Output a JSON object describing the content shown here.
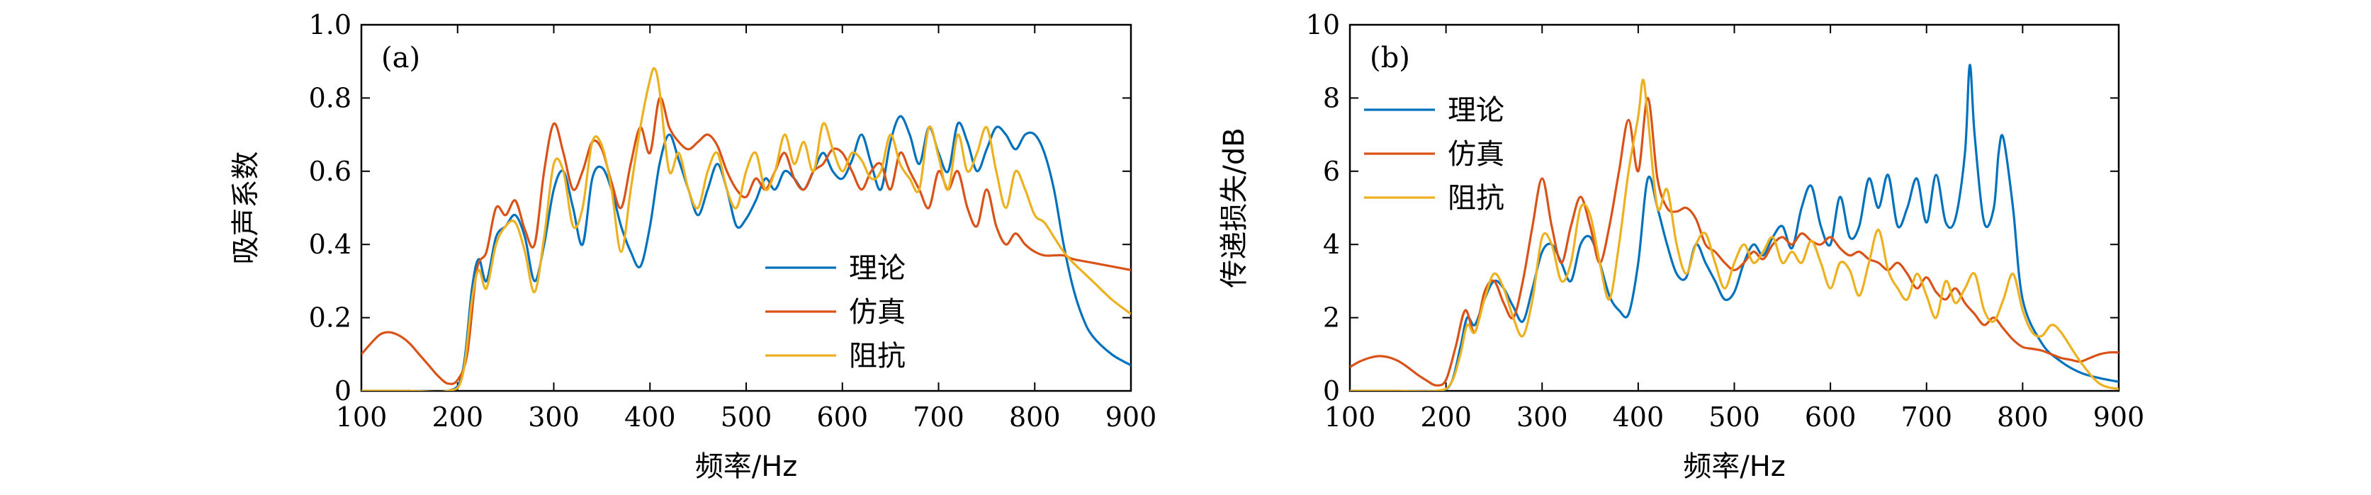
{
  "colors": {
    "theory": "#0072BD",
    "simulation": "#D95319",
    "impedance": "#EDB120",
    "axis": "#000000"
  },
  "chart_data": [
    {
      "type": "line",
      "panel_label": "(a)",
      "xlabel": "频率/Hz",
      "ylabel": "吸声系数",
      "xlim": [
        100,
        900
      ],
      "ylim": [
        0,
        1.0
      ],
      "xticks": [
        100,
        200,
        300,
        400,
        500,
        600,
        700,
        800,
        900
      ],
      "xtick_labels": [
        "100",
        "200",
        "300",
        "400",
        "500",
        "600",
        "700",
        "800",
        "900"
      ],
      "yticks": [
        0,
        0.2,
        0.4,
        0.6,
        0.8,
        1.0
      ],
      "ytick_labels": [
        "0",
        "0.2",
        "0.4",
        "0.6",
        "0.8",
        "1.0"
      ],
      "legend_position": "center-right",
      "series": [
        {
          "name": "理论",
          "color_key": "theory",
          "x": [
            100,
            150,
            190,
            205,
            215,
            222,
            230,
            240,
            250,
            260,
            270,
            280,
            290,
            300,
            310,
            320,
            330,
            340,
            350,
            360,
            370,
            380,
            390,
            400,
            410,
            420,
            430,
            440,
            450,
            460,
            470,
            480,
            490,
            500,
            510,
            520,
            530,
            540,
            550,
            560,
            570,
            580,
            590,
            600,
            610,
            620,
            630,
            640,
            650,
            660,
            670,
            680,
            690,
            700,
            710,
            720,
            730,
            740,
            750,
            760,
            770,
            780,
            790,
            800,
            810,
            820,
            830,
            840,
            850,
            860,
            880,
            900
          ],
          "y": [
            0,
            0,
            0,
            0.05,
            0.28,
            0.36,
            0.3,
            0.42,
            0.45,
            0.48,
            0.42,
            0.3,
            0.4,
            0.55,
            0.6,
            0.5,
            0.4,
            0.58,
            0.61,
            0.55,
            0.45,
            0.38,
            0.34,
            0.45,
            0.62,
            0.7,
            0.63,
            0.55,
            0.48,
            0.55,
            0.62,
            0.55,
            0.45,
            0.47,
            0.52,
            0.58,
            0.55,
            0.6,
            0.58,
            0.55,
            0.6,
            0.65,
            0.6,
            0.58,
            0.63,
            0.7,
            0.62,
            0.55,
            0.68,
            0.75,
            0.7,
            0.62,
            0.72,
            0.65,
            0.6,
            0.73,
            0.68,
            0.6,
            0.66,
            0.72,
            0.7,
            0.66,
            0.7,
            0.7,
            0.65,
            0.55,
            0.4,
            0.28,
            0.2,
            0.15,
            0.1,
            0.07
          ]
        },
        {
          "name": "仿真",
          "color_key": "simulation",
          "x": [
            100,
            110,
            120,
            130,
            140,
            150,
            160,
            170,
            180,
            190,
            200,
            210,
            220,
            230,
            240,
            250,
            260,
            270,
            280,
            290,
            300,
            310,
            320,
            330,
            340,
            350,
            360,
            370,
            380,
            390,
            400,
            410,
            420,
            430,
            440,
            450,
            460,
            470,
            480,
            490,
            500,
            510,
            520,
            530,
            540,
            550,
            560,
            570,
            580,
            590,
            600,
            610,
            620,
            630,
            640,
            650,
            660,
            670,
            680,
            690,
            700,
            710,
            720,
            730,
            740,
            750,
            760,
            770,
            780,
            790,
            800,
            810,
            820,
            830,
            840,
            860,
            880,
            900
          ],
          "y": [
            0.1,
            0.13,
            0.155,
            0.16,
            0.15,
            0.13,
            0.1,
            0.07,
            0.04,
            0.02,
            0.03,
            0.1,
            0.33,
            0.38,
            0.5,
            0.48,
            0.52,
            0.44,
            0.4,
            0.6,
            0.73,
            0.65,
            0.55,
            0.6,
            0.68,
            0.66,
            0.57,
            0.5,
            0.62,
            0.72,
            0.65,
            0.8,
            0.72,
            0.68,
            0.66,
            0.68,
            0.7,
            0.67,
            0.6,
            0.55,
            0.53,
            0.58,
            0.55,
            0.6,
            0.65,
            0.58,
            0.55,
            0.6,
            0.62,
            0.66,
            0.65,
            0.6,
            0.55,
            0.6,
            0.62,
            0.55,
            0.65,
            0.6,
            0.55,
            0.5,
            0.6,
            0.55,
            0.6,
            0.5,
            0.45,
            0.55,
            0.45,
            0.4,
            0.43,
            0.4,
            0.38,
            0.37,
            0.37,
            0.37,
            0.36,
            0.35,
            0.34,
            0.33
          ]
        },
        {
          "name": "阻抗",
          "color_key": "impedance",
          "x": [
            100,
            150,
            190,
            205,
            215,
            222,
            230,
            240,
            250,
            260,
            270,
            280,
            290,
            300,
            310,
            320,
            330,
            340,
            350,
            360,
            370,
            380,
            390,
            400,
            405,
            410,
            420,
            430,
            440,
            450,
            460,
            470,
            480,
            490,
            500,
            510,
            520,
            530,
            540,
            550,
            560,
            570,
            580,
            590,
            600,
            610,
            620,
            630,
            640,
            650,
            660,
            670,
            680,
            690,
            700,
            710,
            720,
            730,
            740,
            750,
            760,
            770,
            780,
            790,
            800,
            810,
            820,
            830,
            840,
            860,
            880,
            900
          ],
          "y": [
            0,
            0,
            0,
            0.04,
            0.25,
            0.33,
            0.28,
            0.4,
            0.45,
            0.46,
            0.38,
            0.27,
            0.42,
            0.62,
            0.6,
            0.45,
            0.5,
            0.68,
            0.67,
            0.55,
            0.38,
            0.55,
            0.72,
            0.85,
            0.88,
            0.82,
            0.6,
            0.65,
            0.55,
            0.5,
            0.6,
            0.65,
            0.55,
            0.5,
            0.6,
            0.65,
            0.55,
            0.6,
            0.7,
            0.62,
            0.68,
            0.6,
            0.73,
            0.66,
            0.6,
            0.65,
            0.63,
            0.58,
            0.6,
            0.7,
            0.62,
            0.58,
            0.55,
            0.72,
            0.64,
            0.55,
            0.7,
            0.6,
            0.65,
            0.72,
            0.6,
            0.5,
            0.6,
            0.55,
            0.48,
            0.46,
            0.42,
            0.38,
            0.35,
            0.3,
            0.25,
            0.21
          ]
        }
      ]
    },
    {
      "type": "line",
      "panel_label": "(b)",
      "xlabel": "频率/Hz",
      "ylabel": "传递损失/dB",
      "xlim": [
        100,
        900
      ],
      "ylim": [
        0,
        10
      ],
      "xticks": [
        100,
        200,
        300,
        400,
        500,
        600,
        700,
        800,
        900
      ],
      "xtick_labels": [
        "100",
        "200",
        "300",
        "400",
        "500",
        "600",
        "700",
        "800",
        "900"
      ],
      "yticks": [
        0,
        2,
        4,
        6,
        8,
        10
      ],
      "ytick_labels": [
        "0",
        "2",
        "4",
        "6",
        "8",
        "10"
      ],
      "legend_position": "top-left",
      "series": [
        {
          "name": "理论",
          "color_key": "theory",
          "x": [
            100,
            150,
            190,
            205,
            215,
            222,
            230,
            240,
            250,
            260,
            270,
            280,
            290,
            300,
            310,
            320,
            330,
            340,
            350,
            360,
            370,
            380,
            390,
            400,
            410,
            420,
            430,
            440,
            450,
            460,
            470,
            480,
            490,
            500,
            510,
            520,
            530,
            540,
            550,
            560,
            570,
            580,
            590,
            600,
            610,
            620,
            630,
            640,
            650,
            660,
            670,
            680,
            690,
            700,
            710,
            720,
            730,
            740,
            745,
            750,
            760,
            770,
            775,
            780,
            790,
            800,
            820,
            840,
            860,
            880,
            900
          ],
          "y": [
            0,
            0,
            0,
            0.2,
            1.2,
            2.0,
            1.8,
            2.5,
            3.0,
            2.8,
            2.3,
            1.9,
            2.8,
            3.8,
            4.0,
            3.5,
            3.0,
            4.0,
            4.2,
            3.5,
            2.6,
            2.2,
            2.1,
            3.5,
            5.8,
            5.0,
            4.0,
            3.2,
            3.1,
            4.0,
            3.5,
            3.0,
            2.5,
            2.7,
            3.5,
            4.0,
            3.7,
            4.2,
            4.5,
            3.9,
            5.0,
            5.6,
            4.5,
            4.0,
            5.3,
            4.2,
            4.5,
            5.8,
            5.0,
            5.9,
            4.5,
            5.0,
            5.8,
            4.6,
            5.9,
            4.6,
            4.7,
            6.5,
            8.9,
            7.0,
            4.6,
            5.0,
            6.5,
            6.9,
            5.0,
            2.5,
            1.3,
            0.8,
            0.5,
            0.35,
            0.25
          ]
        },
        {
          "name": "仿真",
          "color_key": "simulation",
          "x": [
            100,
            110,
            120,
            130,
            140,
            150,
            160,
            170,
            180,
            190,
            200,
            210,
            220,
            230,
            240,
            250,
            260,
            270,
            280,
            290,
            300,
            310,
            320,
            330,
            340,
            350,
            360,
            370,
            380,
            390,
            400,
            410,
            420,
            430,
            440,
            450,
            460,
            470,
            480,
            490,
            500,
            510,
            520,
            530,
            540,
            550,
            560,
            570,
            580,
            590,
            600,
            610,
            620,
            630,
            640,
            650,
            660,
            670,
            680,
            690,
            700,
            710,
            720,
            730,
            740,
            750,
            760,
            770,
            780,
            790,
            800,
            810,
            820,
            830,
            840,
            850,
            860,
            870,
            880,
            890,
            900
          ],
          "y": [
            0.65,
            0.8,
            0.9,
            0.95,
            0.92,
            0.82,
            0.65,
            0.45,
            0.28,
            0.15,
            0.3,
            1.2,
            2.2,
            1.6,
            2.7,
            3.0,
            2.4,
            2.0,
            3.0,
            4.5,
            5.8,
            4.5,
            3.5,
            4.5,
            5.3,
            4.5,
            3.5,
            4.5,
            6.0,
            7.4,
            6.0,
            8.0,
            5.8,
            5.0,
            4.9,
            5.0,
            4.7,
            4.0,
            3.8,
            3.5,
            3.3,
            3.5,
            3.8,
            3.6,
            4.0,
            4.2,
            4.0,
            4.3,
            4.1,
            4.0,
            4.2,
            3.9,
            3.7,
            3.8,
            3.6,
            3.5,
            3.3,
            3.5,
            3.2,
            2.8,
            3.1,
            2.7,
            2.5,
            2.8,
            2.4,
            2.1,
            1.8,
            2.0,
            1.7,
            1.4,
            1.2,
            1.15,
            1.1,
            1.0,
            0.9,
            0.85,
            0.8,
            0.9,
            1.0,
            1.05,
            1.05
          ]
        },
        {
          "name": "阻抗",
          "color_key": "impedance",
          "x": [
            100,
            150,
            190,
            205,
            215,
            222,
            230,
            240,
            250,
            260,
            270,
            280,
            290,
            300,
            310,
            320,
            330,
            340,
            350,
            360,
            370,
            380,
            390,
            400,
            405,
            410,
            420,
            430,
            440,
            450,
            460,
            470,
            480,
            490,
            500,
            510,
            520,
            530,
            540,
            550,
            560,
            570,
            580,
            590,
            600,
            610,
            620,
            630,
            640,
            650,
            660,
            670,
            680,
            690,
            700,
            710,
            720,
            730,
            740,
            750,
            760,
            770,
            780,
            790,
            800,
            810,
            820,
            830,
            840,
            860,
            880,
            900
          ],
          "y": [
            0,
            0,
            0,
            0.2,
            1.0,
            1.8,
            1.6,
            2.5,
            3.2,
            2.8,
            2.0,
            1.5,
            2.5,
            4.2,
            4.0,
            3.0,
            3.5,
            5.0,
            4.8,
            3.5,
            2.5,
            4.0,
            6.0,
            7.5,
            8.5,
            7.5,
            5.0,
            5.5,
            4.0,
            3.2,
            4.0,
            4.3,
            3.5,
            2.8,
            3.5,
            4.0,
            3.5,
            3.8,
            4.2,
            3.5,
            3.8,
            3.5,
            4.1,
            3.5,
            2.8,
            3.5,
            3.3,
            2.6,
            3.5,
            4.4,
            3.3,
            2.8,
            2.5,
            3.2,
            2.6,
            2.0,
            3.0,
            2.4,
            2.8,
            3.2,
            2.2,
            1.9,
            2.5,
            3.2,
            2.2,
            1.6,
            1.5,
            1.8,
            1.6,
            0.8,
            0.2,
            0.05
          ]
        }
      ]
    }
  ]
}
